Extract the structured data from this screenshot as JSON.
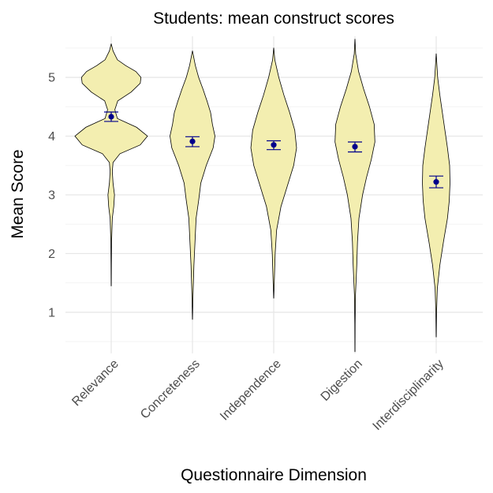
{
  "chart_data": {
    "type": "violin",
    "title": "Students: mean construct scores",
    "xlabel": "Questionnaire Dimension",
    "ylabel": "Mean Score",
    "categories": [
      "Relevance",
      "Concreteness",
      "Independence",
      "Digestion",
      "Interdisciplinarity"
    ],
    "ylim": [
      0.3,
      5.7
    ],
    "yticks": [
      1,
      2,
      3,
      4,
      5
    ],
    "grid": true,
    "legend": "none",
    "colors": {
      "violin_fill": "#f3eeb0",
      "violin_stroke": "#000000",
      "mean": "#00008b",
      "grid": "#e6e6e6"
    },
    "series": [
      {
        "category": "Relevance",
        "mean": 4.33,
        "ci_low": 4.25,
        "ci_high": 4.41,
        "min": 1.45,
        "max": 5.57,
        "density": [
          [
            1.45,
            0.002
          ],
          [
            1.8,
            0.005
          ],
          [
            2.2,
            0.01
          ],
          [
            2.6,
            0.03
          ],
          [
            2.8,
            0.07
          ],
          [
            3.0,
            0.09
          ],
          [
            3.2,
            0.05
          ],
          [
            3.4,
            0.03
          ],
          [
            3.55,
            0.05
          ],
          [
            3.7,
            0.24
          ],
          [
            3.85,
            0.8
          ],
          [
            4.0,
            1.0
          ],
          [
            4.15,
            0.7
          ],
          [
            4.3,
            0.17
          ],
          [
            4.45,
            0.1
          ],
          [
            4.6,
            0.18
          ],
          [
            4.75,
            0.55
          ],
          [
            4.9,
            0.8
          ],
          [
            5.0,
            0.82
          ],
          [
            5.1,
            0.68
          ],
          [
            5.2,
            0.4
          ],
          [
            5.3,
            0.17
          ],
          [
            5.45,
            0.05
          ],
          [
            5.57,
            0.001
          ]
        ]
      },
      {
        "category": "Concreteness",
        "mean": 3.91,
        "ci_low": 3.82,
        "ci_high": 3.99,
        "min": 0.88,
        "max": 5.45,
        "density": [
          [
            0.88,
            0.002
          ],
          [
            1.3,
            0.015
          ],
          [
            1.8,
            0.04
          ],
          [
            2.2,
            0.07
          ],
          [
            2.6,
            0.1
          ],
          [
            2.9,
            0.17
          ],
          [
            3.2,
            0.23
          ],
          [
            3.5,
            0.38
          ],
          [
            3.8,
            0.57
          ],
          [
            4.0,
            0.62
          ],
          [
            4.2,
            0.55
          ],
          [
            4.4,
            0.5
          ],
          [
            4.6,
            0.4
          ],
          [
            4.8,
            0.29
          ],
          [
            5.0,
            0.17
          ],
          [
            5.2,
            0.08
          ],
          [
            5.45,
            0.001
          ]
        ]
      },
      {
        "category": "Independence",
        "mean": 3.85,
        "ci_low": 3.77,
        "ci_high": 3.92,
        "min": 1.24,
        "max": 5.5,
        "density": [
          [
            1.24,
            0.002
          ],
          [
            1.6,
            0.02
          ],
          [
            2.0,
            0.04
          ],
          [
            2.4,
            0.08
          ],
          [
            2.8,
            0.2
          ],
          [
            3.2,
            0.4
          ],
          [
            3.5,
            0.55
          ],
          [
            3.8,
            0.63
          ],
          [
            4.1,
            0.58
          ],
          [
            4.4,
            0.44
          ],
          [
            4.7,
            0.28
          ],
          [
            5.0,
            0.14
          ],
          [
            5.3,
            0.03
          ],
          [
            5.5,
            0.001
          ]
        ]
      },
      {
        "category": "Digestion",
        "mean": 3.82,
        "ci_low": 3.73,
        "ci_high": 3.9,
        "min": 0.33,
        "max": 5.65,
        "density": [
          [
            0.33,
            0.002
          ],
          [
            0.8,
            0.005
          ],
          [
            1.3,
            0.015
          ],
          [
            1.8,
            0.05
          ],
          [
            2.2,
            0.07
          ],
          [
            2.6,
            0.11
          ],
          [
            3.0,
            0.21
          ],
          [
            3.3,
            0.32
          ],
          [
            3.6,
            0.45
          ],
          [
            3.9,
            0.55
          ],
          [
            4.2,
            0.53
          ],
          [
            4.5,
            0.4
          ],
          [
            4.8,
            0.24
          ],
          [
            5.1,
            0.1
          ],
          [
            5.4,
            0.02
          ],
          [
            5.65,
            0.001
          ]
        ]
      },
      {
        "category": "Interdisciplinarity",
        "mean": 3.22,
        "ci_low": 3.12,
        "ci_high": 3.32,
        "min": 0.58,
        "max": 5.4,
        "density": [
          [
            0.58,
            0.002
          ],
          [
            1.0,
            0.01
          ],
          [
            1.4,
            0.03
          ],
          [
            1.8,
            0.1
          ],
          [
            2.2,
            0.2
          ],
          [
            2.6,
            0.31
          ],
          [
            2.9,
            0.36
          ],
          [
            3.2,
            0.38
          ],
          [
            3.5,
            0.37
          ],
          [
            3.8,
            0.31
          ],
          [
            4.1,
            0.24
          ],
          [
            4.4,
            0.17
          ],
          [
            4.7,
            0.1
          ],
          [
            5.0,
            0.04
          ],
          [
            5.4,
            0.001
          ]
        ]
      }
    ]
  }
}
